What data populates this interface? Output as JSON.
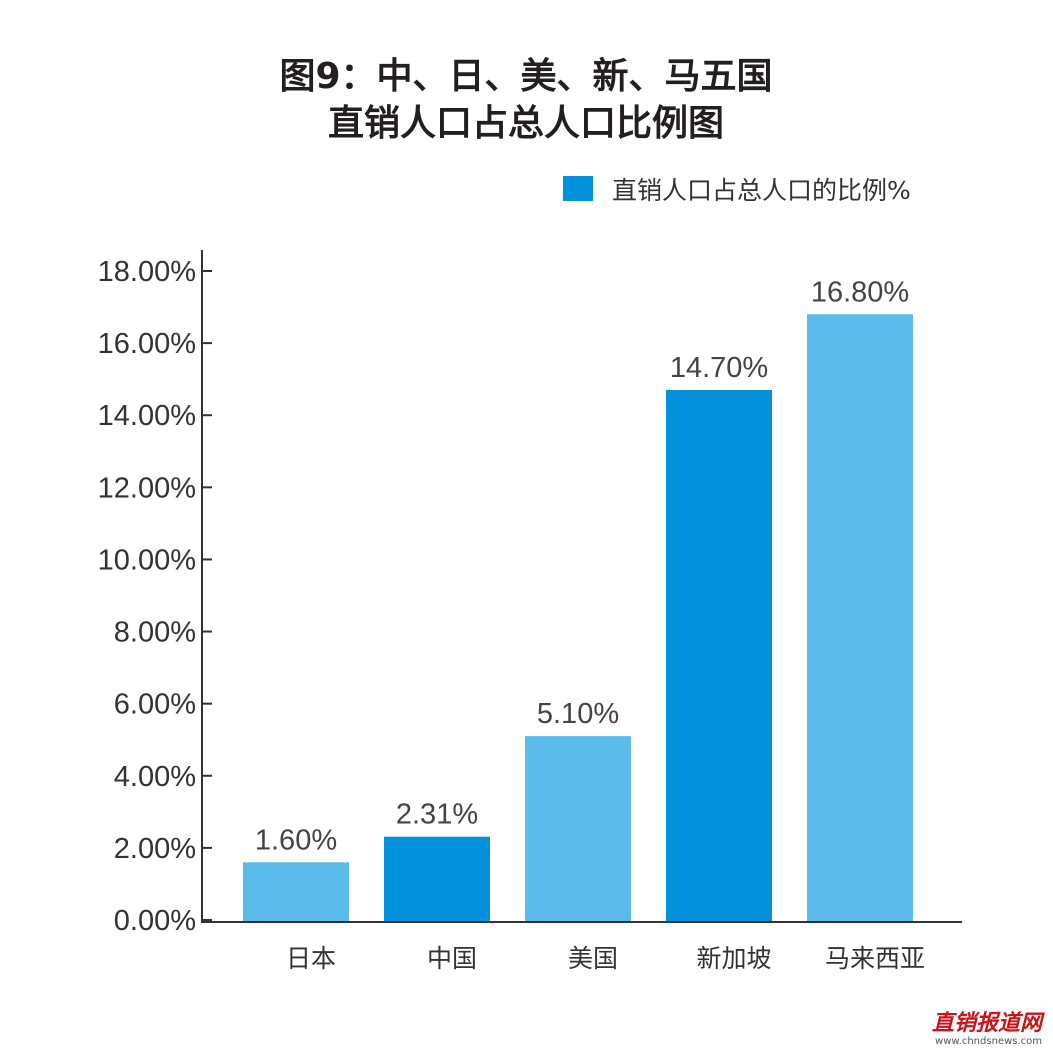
{
  "chart_data": {
    "type": "bar",
    "title_lines": [
      "图9：中、日、美、新、马五国",
      "直销人口占总人口比例图"
    ],
    "categories": [
      "日本",
      "中国",
      "美国",
      "新加坡",
      "马来西亚"
    ],
    "series": [
      {
        "name": "直销人口占总人口的比例%",
        "values": [
          1.6,
          2.31,
          5.1,
          14.7,
          16.8
        ],
        "value_labels": [
          "1.60%",
          "2.31%",
          "5.10%",
          "14.70%",
          "16.80%"
        ]
      }
    ],
    "yticks": [
      "0.00%",
      "2.00%",
      "4.00%",
      "6.00%",
      "8.00%",
      "10.00%",
      "12.00%",
      "14.00%",
      "16.00%",
      "18.00%"
    ],
    "ylim": [
      0,
      18
    ],
    "xlabel": "",
    "ylabel": "",
    "grid": false,
    "legend_position": "top-right",
    "colors": {
      "light_bar": "#5bbcec",
      "dark_bar": "#0292dc",
      "legend_swatch": "#0292dc",
      "axis": "#333333"
    },
    "bar_color_pattern": [
      "light",
      "dark",
      "light",
      "dark",
      "light"
    ]
  },
  "watermark": {
    "main": "直销报道网",
    "sub": "www.chndsnews.com"
  }
}
